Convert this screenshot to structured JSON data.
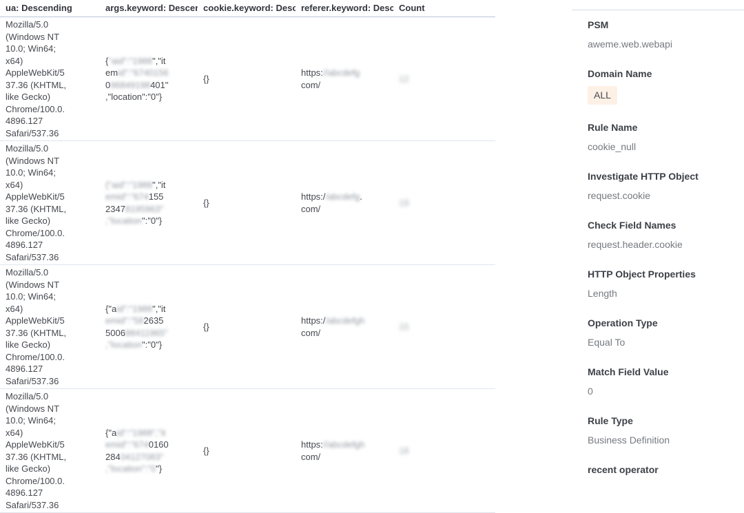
{
  "table": {
    "columns": [
      {
        "key": "ua",
        "label": "ua: Descending"
      },
      {
        "key": "args",
        "label": "args.keyword: Descen..."
      },
      {
        "key": "cookie",
        "label": "cookie.keyword: Desc..."
      },
      {
        "key": "referer",
        "label": "referer.keyword: Desc..."
      },
      {
        "key": "count",
        "label": "Count"
      }
    ],
    "rows": [
      {
        "ua": "Mozilla/5.0\n(Windows NT\n10.0; Win64;\nx64)\nAppleWebKit/5\n37.36 (KHTML,\nlike Gecko)\nChrome/100.0.\n4896.127\nSafari/537.36",
        "args": [
          [
            {
              "t": "{",
              "b": false
            },
            {
              "t": "\"aid\":\"1988",
              "b": true
            },
            {
              "t": "\",\"it",
              "b": false
            }
          ],
          [
            {
              "t": "em",
              "b": false
            },
            {
              "t": "id\":\"6740156",
              "b": true
            }
          ],
          [
            {
              "t": "0",
              "b": false
            },
            {
              "t": "96849198",
              "b": true
            },
            {
              "t": "401\"",
              "b": false
            }
          ],
          [
            {
              "t": ",\"location\":\"0\"}",
              "b": false
            }
          ]
        ],
        "cookie": "{}",
        "referer": [
          [
            {
              "t": "https:",
              "b": false
            },
            {
              "t": "//abcdefg",
              "b": true
            }
          ],
          [
            {
              "t": "com/",
              "b": false
            }
          ]
        ],
        "count": "12"
      },
      {
        "ua": "Mozilla/5.0\n(Windows NT\n10.0; Win64;\nx64)\nAppleWebKit/5\n37.36 (KHTML,\nlike Gecko)\nChrome/100.0.\n4896.127\nSafari/537.36",
        "args": [
          [
            {
              "t": "{\"aid\":\"1988",
              "b": true
            },
            {
              "t": "\",\"it",
              "b": false
            }
          ],
          [
            {
              "t": "emid\":\"674",
              "b": true
            },
            {
              "t": "155",
              "b": false
            }
          ],
          [
            {
              "t": "2347",
              "b": false
            },
            {
              "t": "8195963\"",
              "b": true
            }
          ],
          [
            {
              "t": ",\"location",
              "b": true
            },
            {
              "t": "\":\"0\"}",
              "b": false
            }
          ]
        ],
        "cookie": "{}",
        "referer": [
          [
            {
              "t": "https:/",
              "b": false
            },
            {
              "t": "/abcdefg",
              "b": true
            },
            {
              "t": ".",
              "b": false
            }
          ],
          [
            {
              "t": "com/",
              "b": false
            }
          ]
        ],
        "count": "19"
      },
      {
        "ua": "Mozilla/5.0\n(Windows NT\n10.0; Win64;\nx64)\nAppleWebKit/5\n37.36 (KHTML,\nlike Gecko)\nChrome/100.0.\n4896.127\nSafari/537.36",
        "args": [
          [
            {
              "t": "{\"a",
              "b": false
            },
            {
              "t": "id\":\"1988",
              "b": true
            },
            {
              "t": "\",\"it",
              "b": false
            }
          ],
          [
            {
              "t": "emid\":\"58",
              "b": true
            },
            {
              "t": "2635",
              "b": false
            }
          ],
          [
            {
              "t": "5006",
              "b": false
            },
            {
              "t": "88411965\"",
              "b": true
            }
          ],
          [
            {
              "t": ",\"location",
              "b": true
            },
            {
              "t": "\":\"0\"}",
              "b": false
            }
          ]
        ],
        "cookie": "{}",
        "referer": [
          [
            {
              "t": "https:/",
              "b": false
            },
            {
              "t": "/abcdefgh",
              "b": true
            }
          ],
          [
            {
              "t": "com/",
              "b": false
            }
          ]
        ],
        "count": "15"
      },
      {
        "ua": "Mozilla/5.0\n(Windows NT\n10.0; Win64;\nx64)\nAppleWebKit/5\n37.36 (KHTML,\nlike Gecko)\nChrome/100.0.\n4896.127\nSafari/537.36",
        "args": [
          [
            {
              "t": "{\"a",
              "b": false
            },
            {
              "t": "id\":\"1988\",\"it",
              "b": true
            }
          ],
          [
            {
              "t": "emid\":\"674",
              "b": true
            },
            {
              "t": "0160",
              "b": false
            }
          ],
          [
            {
              "t": "284",
              "b": false
            },
            {
              "t": "04127083\"",
              "b": true
            }
          ],
          [
            {
              "t": ",\"location\":\"0",
              "b": true
            },
            {
              "t": "\"}",
              "b": false
            }
          ]
        ],
        "cookie": "{}",
        "referer": [
          [
            {
              "t": "https:",
              "b": false
            },
            {
              "t": "//abcdefgh",
              "b": true
            }
          ],
          [
            {
              "t": "com/",
              "b": false
            }
          ]
        ],
        "count": "18"
      }
    ]
  },
  "panel": {
    "fields": [
      {
        "label": "PSM",
        "value": "aweme.web.webapi",
        "tag": false
      },
      {
        "label": "Domain Name",
        "value": "ALL",
        "tag": true
      },
      {
        "label": "Rule Name",
        "value": "cookie_null",
        "tag": false
      },
      {
        "label": "Investigate HTTP Object",
        "value": "request.cookie",
        "tag": false
      },
      {
        "label": "Check Field Names",
        "value": "request.header.cookie",
        "tag": false
      },
      {
        "label": "HTTP Object Properties",
        "value": "Length",
        "tag": false
      },
      {
        "label": "Operation Type",
        "value": "Equal To",
        "tag": false
      },
      {
        "label": "Match Field Value",
        "value": "0",
        "tag": false
      },
      {
        "label": "Rule Type",
        "value": "Business Definition",
        "tag": false
      },
      {
        "label": "recent operator",
        "value": "",
        "tag": false
      }
    ]
  }
}
